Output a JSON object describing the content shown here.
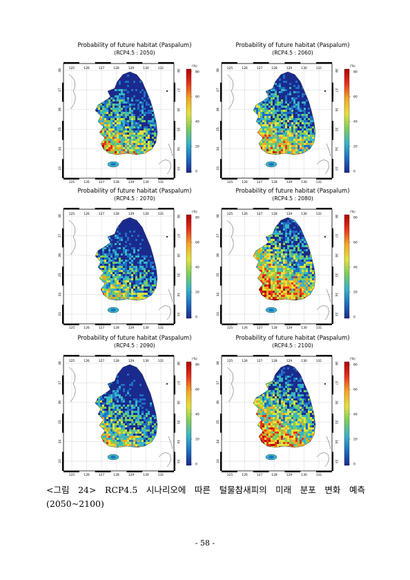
{
  "figures": [
    {
      "title": "Probability of future habitat (Paspalum)",
      "scenario": "(RCP4.5 : 2050)",
      "level": 0.42
    },
    {
      "title": "Probability of future habitat (Paspalum)",
      "scenario": "(RCP4.5 : 2060)",
      "level": 0.46
    },
    {
      "title": "Probability of future habitat (Paspalum)",
      "scenario": "(RCP4.5 : 2070)",
      "level": 0.34
    },
    {
      "title": "Probability of future habitat (Paspalum)",
      "scenario": "(RCP4.5 : 2080)",
      "level": 0.58
    },
    {
      "title": "Probability of future habitat (Paspalum)",
      "scenario": "(RCP4.5 : 2090)",
      "level": 0.36
    },
    {
      "title": "Probability of future habitat (Paspalum)",
      "scenario": "(RCP4.5 : 2100)",
      "level": 0.55
    }
  ],
  "axes": {
    "lon_ticks": [
      "125",
      "126",
      "127",
      "128",
      "129",
      "130",
      "131"
    ],
    "lat_ticks": [
      "38",
      "37",
      "36",
      "35",
      "34",
      "33"
    ]
  },
  "colorbar": {
    "unit": "(%)",
    "ticks": [
      "80",
      "60",
      "40",
      "20",
      "0"
    ],
    "colors": [
      "#b40000",
      "#e8321c",
      "#f5a623",
      "#e4e23a",
      "#7ccd5a",
      "#37b5c6",
      "#1e6fc4",
      "#1a2a8c"
    ]
  },
  "caption": {
    "line1": [
      "<그림",
      "24>",
      "RCP4.5",
      "시나리오에",
      "따른",
      "털물참새피의",
      "미래",
      "분포",
      "변화",
      "예측"
    ],
    "line2": "(2050~2100)"
  },
  "page_number": "- 58 -"
}
